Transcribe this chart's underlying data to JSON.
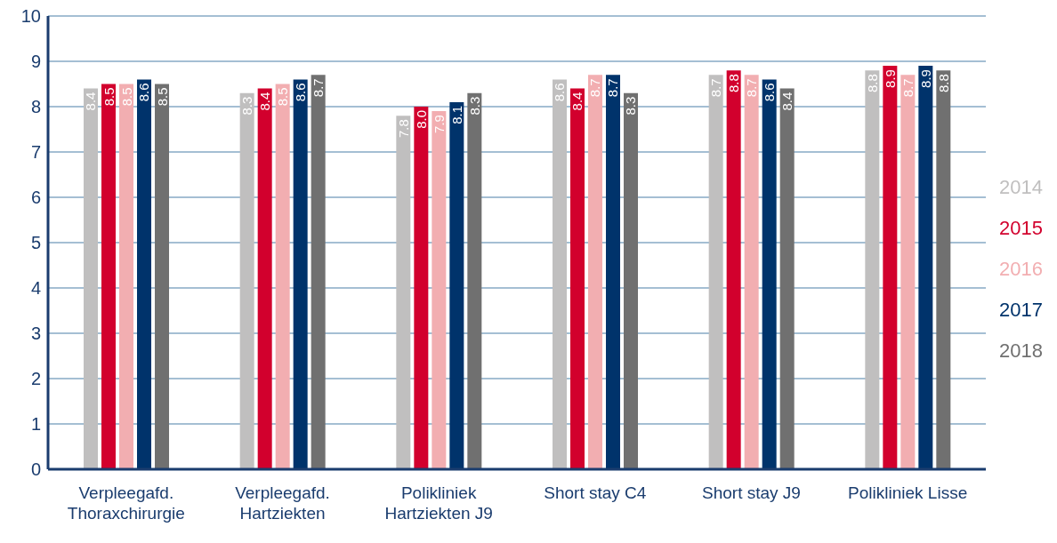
{
  "chart_data": {
    "type": "bar",
    "categories": [
      "Verpleegafd. Thoraxchirurgie",
      "Verpleegafd. Hartziekten",
      "Polikliniek Hartziekten J9",
      "Short stay C4",
      "Short stay J9",
      "Polikliniek Lisse"
    ],
    "series": [
      {
        "name": "2014",
        "color": "#c0bfbf",
        "values": [
          8.4,
          8.3,
          7.8,
          8.6,
          8.7,
          8.8
        ],
        "value_labels": [
          "8.4",
          "8.3",
          "7.8",
          "8.6",
          "8.7",
          "8.8"
        ]
      },
      {
        "name": "2015",
        "color": "#d2002d",
        "values": [
          8.5,
          8.4,
          8.0,
          8.4,
          8.8,
          8.9
        ],
        "value_labels": [
          "8.5",
          "8.4",
          "8.0",
          "8.4",
          "8.8",
          "8.9"
        ]
      },
      {
        "name": "2016",
        "color": "#f2aeb1",
        "values": [
          8.5,
          8.5,
          7.9,
          8.7,
          8.7,
          8.7
        ],
        "value_labels": [
          "8.5",
          "8.5",
          "7.9",
          "8.7",
          "8.7",
          "8.7"
        ]
      },
      {
        "name": "2017",
        "color": "#00336b",
        "values": [
          8.6,
          8.6,
          8.1,
          8.7,
          8.6,
          8.9
        ],
        "value_labels": [
          "8.6",
          "8.6",
          "8.1",
          "8.7",
          "8.6",
          "8.9"
        ]
      },
      {
        "name": "2018",
        "color": "#707070",
        "values": [
          8.5,
          8.7,
          8.3,
          8.3,
          8.4,
          8.8
        ],
        "value_labels": [
          "8.5",
          "8.7",
          "8.3",
          "8.3",
          "8.4",
          "8.8"
        ]
      }
    ],
    "ylim": [
      0,
      10
    ],
    "yticks": [
      0,
      1,
      2,
      3,
      4,
      5,
      6,
      7,
      8,
      9,
      10
    ],
    "grid": "y",
    "legend": "right"
  }
}
